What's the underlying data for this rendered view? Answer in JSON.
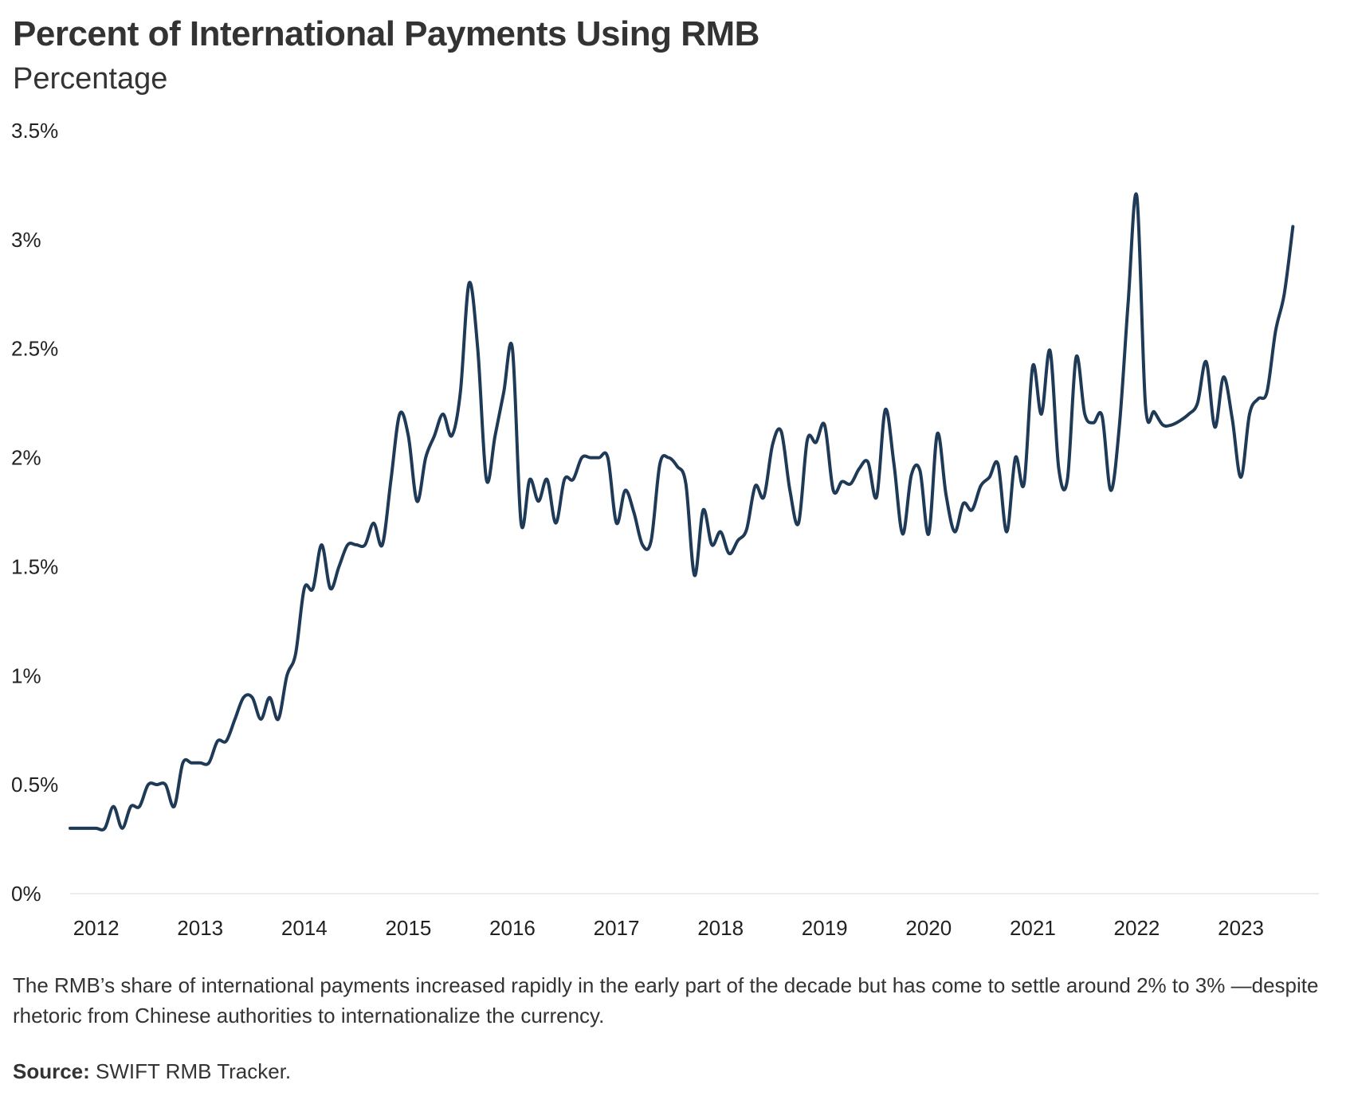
{
  "title": "Percent of International Payments Using RMB",
  "subtitle": "Percentage",
  "caption": "The RMB’s share of international payments increased rapidly in the early part of the decade but has come to settle around 2% to 3% —despite rhetoric from Chinese authorities to internationalize the currency.",
  "source_label": "Source:",
  "source_text": "SWIFT RMB Tracker.",
  "colors": {
    "line": "#1f3a57",
    "gridline": "#e6e6e6"
  },
  "chart_data": {
    "type": "line",
    "title": "Percent of International Payments Using RMB",
    "subtitle": "Percentage",
    "xlabel": "",
    "ylabel": "",
    "x_ticks": [
      "2012",
      "2013",
      "2014",
      "2015",
      "2016",
      "2017",
      "2018",
      "2019",
      "2020",
      "2021",
      "2022",
      "2023"
    ],
    "y_ticks": [
      "0%",
      "0.5%",
      "1%",
      "1.5%",
      "2%",
      "2.5%",
      "3%",
      "3.5%"
    ],
    "y_tick_values": [
      0,
      0.5,
      1,
      1.5,
      2,
      2.5,
      3,
      3.5
    ],
    "ylim": [
      0,
      3.5
    ],
    "xlim": [
      "2011-10",
      "2023-10"
    ],
    "grid": "baseline only",
    "legend": "none",
    "series": [
      {
        "name": "",
        "x": [
          "2011-10",
          "2011-11",
          "2011-12",
          "2012-01",
          "2012-02",
          "2012-03",
          "2012-04",
          "2012-05",
          "2012-06",
          "2012-07",
          "2012-08",
          "2012-09",
          "2012-10",
          "2012-11",
          "2012-12",
          "2013-01",
          "2013-02",
          "2013-03",
          "2013-04",
          "2013-05",
          "2013-06",
          "2013-07",
          "2013-08",
          "2013-09",
          "2013-10",
          "2013-11",
          "2013-12",
          "2014-01",
          "2014-02",
          "2014-03",
          "2014-04",
          "2014-05",
          "2014-06",
          "2014-07",
          "2014-08",
          "2014-09",
          "2014-10",
          "2014-11",
          "2014-12",
          "2015-01",
          "2015-02",
          "2015-03",
          "2015-04",
          "2015-05",
          "2015-06",
          "2015-07",
          "2015-08",
          "2015-09",
          "2015-10",
          "2015-11",
          "2015-12",
          "2016-01",
          "2016-02",
          "2016-03",
          "2016-04",
          "2016-05",
          "2016-06",
          "2016-07",
          "2016-08",
          "2016-09",
          "2016-10",
          "2016-11",
          "2016-12",
          "2017-01",
          "2017-02",
          "2017-03",
          "2017-04",
          "2017-05",
          "2017-06",
          "2017-07",
          "2017-08",
          "2017-09",
          "2017-10",
          "2017-11",
          "2017-12",
          "2018-01",
          "2018-02",
          "2018-03",
          "2018-04",
          "2018-05",
          "2018-06",
          "2018-07",
          "2018-08",
          "2018-09",
          "2018-10",
          "2018-11",
          "2018-12",
          "2019-01",
          "2019-02",
          "2019-03",
          "2019-04",
          "2019-05",
          "2019-06",
          "2019-07",
          "2019-08",
          "2019-09",
          "2019-10",
          "2019-11",
          "2019-12",
          "2020-01",
          "2020-02",
          "2020-03",
          "2020-04",
          "2020-05",
          "2020-06",
          "2020-07",
          "2020-08",
          "2020-09",
          "2020-10",
          "2020-11",
          "2020-12",
          "2021-01",
          "2021-02",
          "2021-03",
          "2021-04",
          "2021-05",
          "2021-06",
          "2021-07",
          "2021-08",
          "2021-09",
          "2021-10",
          "2021-11",
          "2021-12",
          "2022-01",
          "2022-02",
          "2022-03",
          "2022-04",
          "2022-05",
          "2022-06",
          "2022-07",
          "2022-08",
          "2022-09",
          "2022-10",
          "2022-11",
          "2022-12",
          "2023-01",
          "2023-02",
          "2023-03",
          "2023-04",
          "2023-05",
          "2023-06",
          "2023-07"
        ],
        "values": [
          0.3,
          0.3,
          0.3,
          0.3,
          0.3,
          0.4,
          0.3,
          0.4,
          0.4,
          0.5,
          0.5,
          0.5,
          0.4,
          0.6,
          0.6,
          0.6,
          0.6,
          0.7,
          0.7,
          0.8,
          0.9,
          0.9,
          0.8,
          0.9,
          0.8,
          1.0,
          1.1,
          1.4,
          1.4,
          1.6,
          1.4,
          1.5,
          1.6,
          1.6,
          1.6,
          1.7,
          1.6,
          1.9,
          2.2,
          2.1,
          1.8,
          2.0,
          2.1,
          2.2,
          2.1,
          2.3,
          2.8,
          2.5,
          1.9,
          2.1,
          2.3,
          2.5,
          1.7,
          1.9,
          1.8,
          1.9,
          1.7,
          1.9,
          1.9,
          2.0,
          2.0,
          2.0,
          2.0,
          1.7,
          1.85,
          1.75,
          1.6,
          1.62,
          1.97,
          2.0,
          1.96,
          1.88,
          1.46,
          1.76,
          1.6,
          1.66,
          1.56,
          1.62,
          1.67,
          1.87,
          1.82,
          2.06,
          2.12,
          1.85,
          1.7,
          2.08,
          2.07,
          2.15,
          1.85,
          1.89,
          1.88,
          1.95,
          1.98,
          1.82,
          2.22,
          1.97,
          1.65,
          1.92,
          1.94,
          1.65,
          2.11,
          1.83,
          1.66,
          1.79,
          1.76,
          1.87,
          1.91,
          1.97,
          1.66,
          2.0,
          1.88,
          2.42,
          2.2,
          2.49,
          1.95,
          1.9,
          2.46,
          2.2,
          2.16,
          2.19,
          1.85,
          2.15,
          2.71,
          3.2,
          2.24,
          2.21,
          2.15,
          2.15,
          2.17,
          2.2,
          2.25,
          2.44,
          2.14,
          2.37,
          2.18,
          1.91,
          2.2,
          2.27,
          2.3,
          2.58,
          2.75,
          3.06
        ]
      }
    ]
  }
}
